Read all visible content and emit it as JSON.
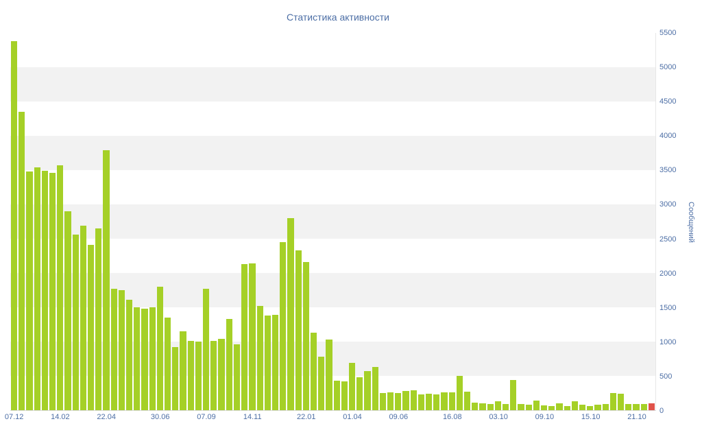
{
  "page": {
    "title": "Статистика активности"
  },
  "colors": {
    "bar": "#a5d027",
    "bar_last": "#e0534a",
    "text": "#4c6ea5",
    "stripe": "#f2f2f2",
    "background": "#ffffff"
  },
  "chart_data": {
    "type": "bar",
    "title": "Статистика активности",
    "xlabel": "",
    "ylabel": "Сообщений",
    "ylim": [
      0,
      5500
    ],
    "ytick_step": 500,
    "ytick_labels": [
      "0",
      "500",
      "1000",
      "1500",
      "2000",
      "2500",
      "3000",
      "3500",
      "4000",
      "4500",
      "5000",
      "5500"
    ],
    "grid": "alternating-horizontal-bands",
    "legend_position": "none",
    "last_bar_highlighted": true,
    "values": [
      5380,
      4350,
      3480,
      3540,
      3490,
      3460,
      3570,
      2900,
      2560,
      2690,
      2410,
      2650,
      3790,
      1770,
      1750,
      1610,
      1500,
      1480,
      1500,
      1800,
      1350,
      920,
      1150,
      1010,
      1000,
      1770,
      1010,
      1040,
      1330,
      960,
      2130,
      2140,
      1520,
      1380,
      1390,
      2450,
      2800,
      2330,
      2160,
      1130,
      780,
      1030,
      430,
      420,
      690,
      480,
      570,
      630,
      250,
      260,
      250,
      280,
      290,
      230,
      240,
      230,
      260,
      260,
      500,
      270,
      110,
      100,
      90,
      130,
      90,
      440,
      90,
      80,
      140,
      70,
      60,
      100,
      60,
      130,
      80,
      60,
      80,
      90,
      250,
      240,
      90,
      90,
      90,
      100
    ],
    "x_tick_labels": [
      {
        "label": "07.12",
        "bar_index": 0
      },
      {
        "label": "14.02",
        "bar_index": 6
      },
      {
        "label": "22.04",
        "bar_index": 12
      },
      {
        "label": "30.06",
        "bar_index": 19
      },
      {
        "label": "07.09",
        "bar_index": 25
      },
      {
        "label": "14.11",
        "bar_index": 31
      },
      {
        "label": "22.01",
        "bar_index": 38
      },
      {
        "label": "01.04",
        "bar_index": 44
      },
      {
        "label": "09.06",
        "bar_index": 50
      },
      {
        "label": "16.08",
        "bar_index": 57
      },
      {
        "label": "03.10",
        "bar_index": 63
      },
      {
        "label": "09.10",
        "bar_index": 69
      },
      {
        "label": "15.10",
        "bar_index": 75
      },
      {
        "label": "21.10",
        "bar_index": 81
      }
    ]
  }
}
